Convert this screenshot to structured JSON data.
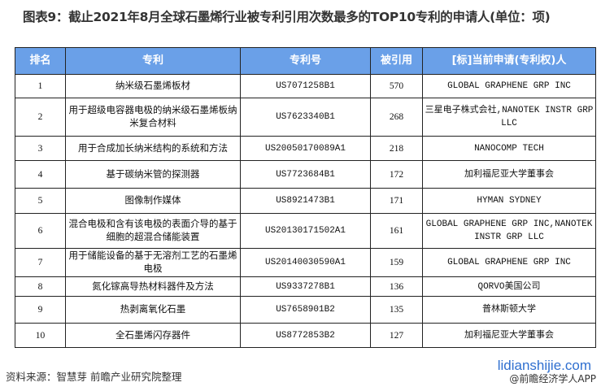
{
  "title": "图表9：截止2021年8月全球石墨烯行业被专利引用次数最多的TOP10专利的申请人(单位：项)",
  "headers": [
    "排名",
    "专利",
    "专利号",
    "被引用",
    "[标]当前申请(专利权)人"
  ],
  "rows": [
    [
      "1",
      "纳米级石墨烯板材",
      "US7071258B1",
      "570",
      "GLOBAL GRAPHENE GRP INC"
    ],
    [
      "2",
      "用于超级电容器电极的纳米级石墨烯板纳米复合材料",
      "US7623340B1",
      "268",
      "三星电子株式会社,NANOTEK INSTR GRP LLC"
    ],
    [
      "3",
      "用于合成加长纳米结构的系统和方法",
      "US20050170089A1",
      "218",
      "NANOCOMP TECH"
    ],
    [
      "4",
      "基于碳纳米管的探测器",
      "US7723684B1",
      "172",
      "加利福尼亚大学董事会"
    ],
    [
      "5",
      "图像制作媒体",
      "US8921473B1",
      "171",
      "HYMAN SYDNEY"
    ],
    [
      "6",
      "混合电极和含有该电极的表面介导的基于细胞的超混合储能装置",
      "US20130171502A1",
      "161",
      "GLOBAL GRAPHENE GRP INC,NANOTEK INSTR GRP LLC"
    ],
    [
      "7",
      "用于储能设备的基于无溶剂工艺的石墨烯电极",
      "US20140030590A1",
      "159",
      "GLOBAL GRAPHENE GRP INC"
    ],
    [
      "8",
      "氮化镓高导热材料器件及方法",
      "US9337278B1",
      "136",
      "QORVO美国公司"
    ],
    [
      "9",
      "热剥离氧化石墨",
      "US7658901B2",
      "135",
      "普林斯顿大学"
    ],
    [
      "10",
      "全石墨烯闪存器件",
      "US8772853B2",
      "127",
      "加利福尼亚大学董事会"
    ]
  ],
  "source": "资料来源：智慧芽 前瞻产业研究院整理",
  "watermark_site": "lidianshijie.com",
  "watermark_app": "@前瞻经济学人APP",
  "colors": {
    "header_bg": "#6aa0e8",
    "watermark": "#2f6fcf"
  }
}
